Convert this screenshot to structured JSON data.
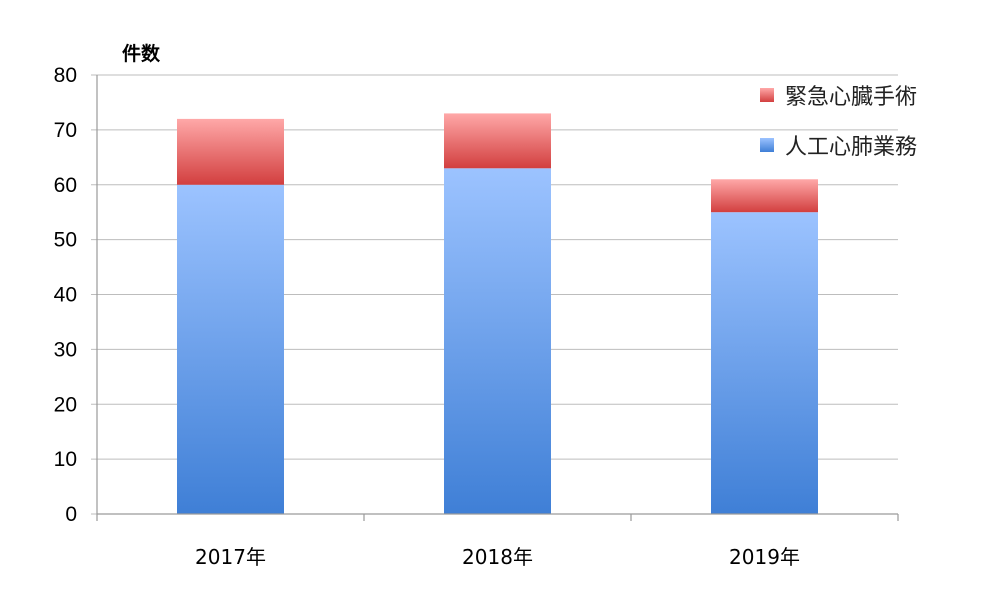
{
  "chart_data": {
    "type": "bar",
    "stacked": true,
    "categories": [
      "2017年",
      "2018年",
      "2019年"
    ],
    "series": [
      {
        "name": "人工心肺業務",
        "values": [
          60,
          63,
          55
        ]
      },
      {
        "name": "緊急心臓手術",
        "values": [
          12,
          10,
          6
        ]
      }
    ],
    "ylabel": "件数",
    "ylim": [
      0,
      80
    ],
    "yticks": [
      0,
      10,
      20,
      30,
      40,
      50,
      60,
      70,
      80
    ],
    "grid": true,
    "legend_position": "top-right",
    "colors": {
      "人工心肺業務": [
        "#9cc3ff",
        "#3f7fd6"
      ],
      "緊急心臓手術": [
        "#ffa8a8",
        "#d23f3f"
      ]
    }
  }
}
